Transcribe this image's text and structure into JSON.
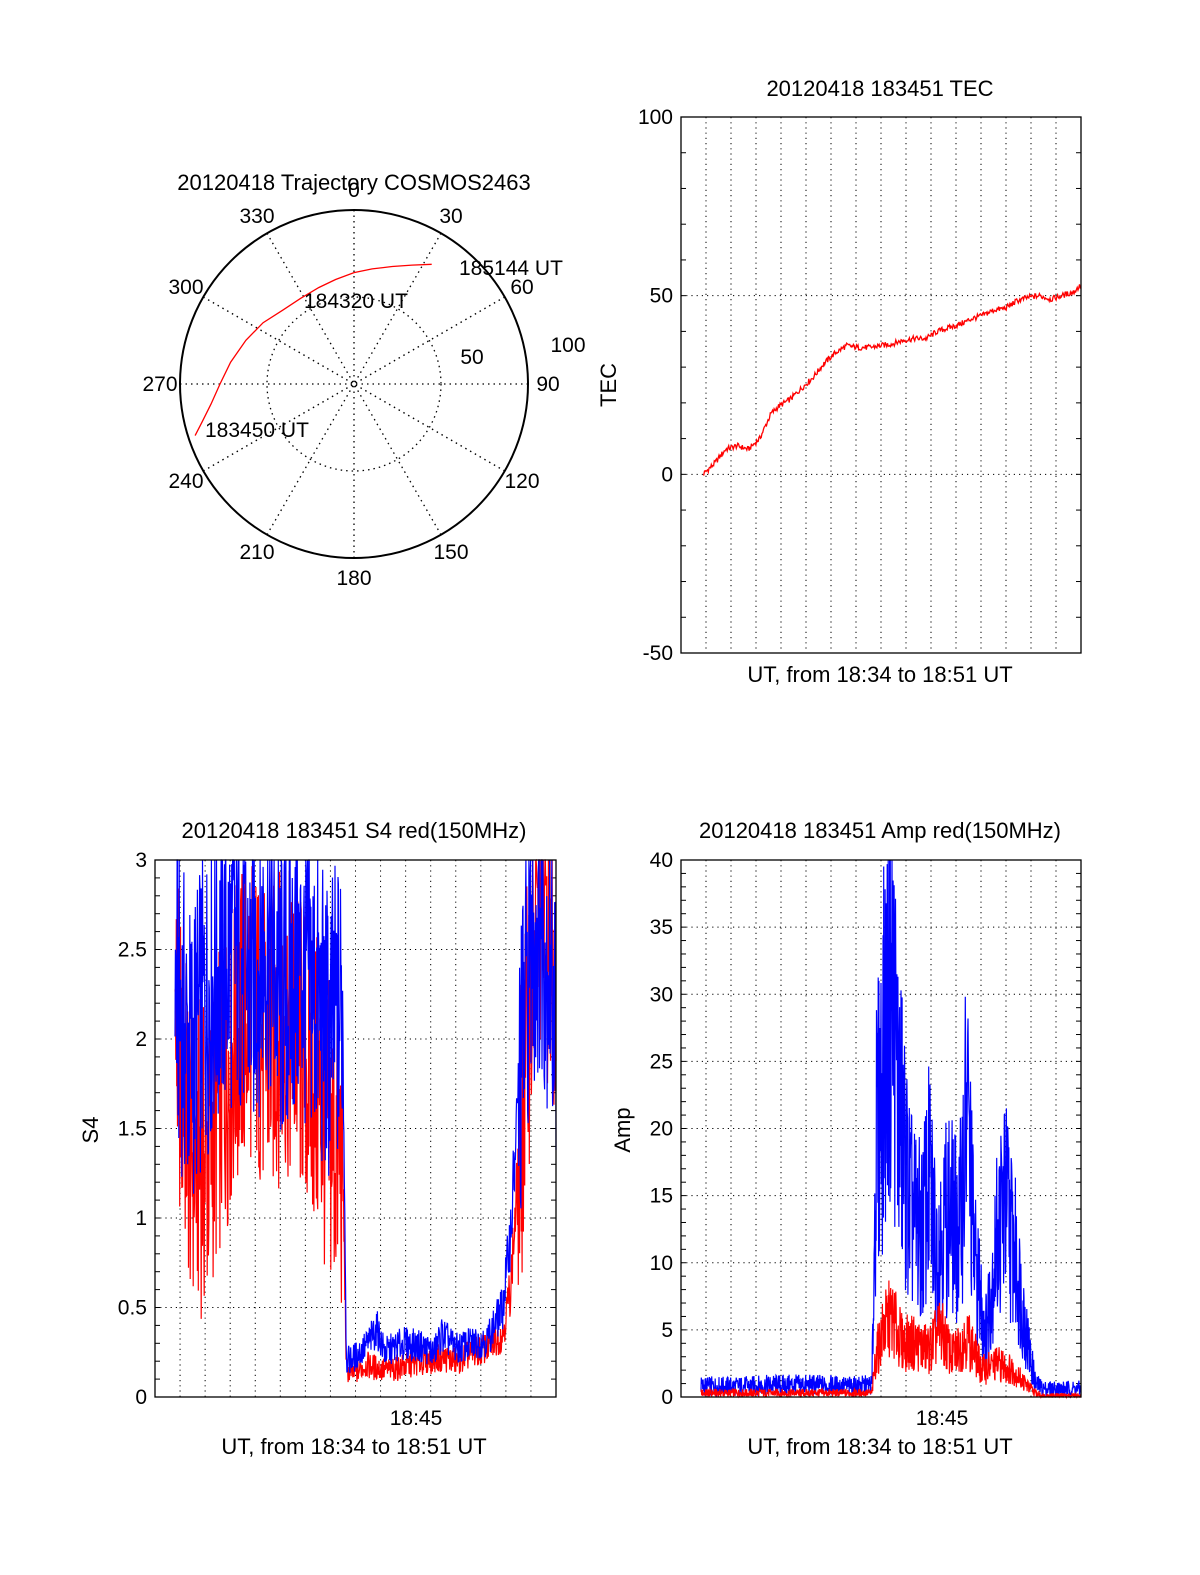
{
  "colors": {
    "red": "#ff0000",
    "blue": "#0000ff",
    "axis": "#000000",
    "grid": "#000000"
  },
  "chart_data": [
    {
      "type": "polar",
      "title": "20120418 Trajectory COSMOS2463",
      "azimuth_labels": [
        "0",
        "30",
        "60",
        "90",
        "120",
        "150",
        "180",
        "210",
        "240",
        "270",
        "300",
        "330"
      ],
      "radial_labels": [
        "50",
        "100"
      ],
      "series": [
        {
          "color": "#ff0000",
          "points": [
            {
              "az": 252,
              "r": 96
            },
            {
              "az": 256,
              "r": 90
            },
            {
              "az": 262,
              "r": 83
            },
            {
              "az": 270,
              "r": 77
            },
            {
              "az": 280,
              "r": 72
            },
            {
              "az": 292,
              "r": 67
            },
            {
              "az": 304,
              "r": 63
            },
            {
              "az": 316,
              "r": 59
            },
            {
              "az": 328,
              "r": 58
            },
            {
              "az": 340,
              "r": 59
            },
            {
              "az": 350,
              "r": 61
            },
            {
              "az": 0,
              "r": 64
            },
            {
              "az": 9,
              "r": 67
            },
            {
              "az": 18,
              "r": 71
            },
            {
              "az": 26,
              "r": 76
            },
            {
              "az": 33,
              "r": 82
            }
          ]
        }
      ],
      "annotations": [
        "183450 UT",
        "184320 UT",
        "185144 UT"
      ]
    },
    {
      "type": "line",
      "title": "20120418 183451 TEC",
      "xlabel": "UT, from 18:34 to 18:51 UT",
      "ylabel": "TEC",
      "ylim": [
        -50,
        100
      ],
      "yticks": [
        "-50",
        "0",
        "50",
        "100"
      ],
      "grid": true,
      "series": [
        {
          "color": "#ff0000",
          "x": [
            0,
            0.03,
            0.06,
            0.09,
            0.12,
            0.15,
            0.18,
            0.2,
            0.23,
            0.26,
            0.29,
            0.32,
            0.35,
            0.38,
            0.41,
            0.44,
            0.47,
            0.5,
            0.53,
            0.56,
            0.59,
            0.62,
            0.65,
            0.68,
            0.71,
            0.74,
            0.77,
            0.8,
            0.83,
            0.86,
            0.89,
            0.92,
            0.95,
            0.98,
            1.0
          ],
          "values": [
            0,
            3,
            7,
            8,
            7,
            10,
            17,
            19,
            21,
            24,
            27,
            31,
            34,
            36,
            35.5,
            35.5,
            36,
            36.5,
            37.5,
            38,
            38,
            40,
            41,
            42,
            43.5,
            44.5,
            46,
            46.5,
            48.5,
            49.5,
            50,
            49,
            50,
            51,
            53
          ]
        }
      ]
    },
    {
      "type": "line",
      "title": "20120418 183451 S4 red(150MHz)",
      "xlabel": "UT, from 18:34 to 18:51 UT",
      "ylabel": "S4",
      "ylim": [
        0,
        3
      ],
      "yticks": [
        "0",
        "0.5",
        "1",
        "1.5",
        "2",
        "2.5",
        "3"
      ],
      "xticks": [
        "18:45"
      ],
      "grid": true,
      "series": [
        {
          "color": "#ff0000",
          "x": [
            0.0,
            0.04,
            0.08,
            0.12,
            0.16,
            0.2,
            0.24,
            0.28,
            0.32,
            0.36,
            0.4,
            0.44,
            0.45,
            0.47,
            0.5,
            0.55,
            0.6,
            0.65,
            0.7,
            0.74,
            0.78,
            0.82,
            0.86,
            0.88,
            0.9,
            0.93,
            0.96,
            1.0
          ],
          "values": [
            2.1,
            1.4,
            1.3,
            1.7,
            2.0,
            2.2,
            1.9,
            2.1,
            2.0,
            1.8,
            1.5,
            1.3,
            0.15,
            0.13,
            0.18,
            0.15,
            0.17,
            0.2,
            0.22,
            0.2,
            0.24,
            0.28,
            0.35,
            0.6,
            1.2,
            2.2,
            2.8,
            2.4
          ]
        },
        {
          "color": "#0000ff",
          "x": [
            0.0,
            0.04,
            0.08,
            0.12,
            0.16,
            0.2,
            0.24,
            0.28,
            0.32,
            0.36,
            0.4,
            0.44,
            0.45,
            0.47,
            0.5,
            0.53,
            0.55,
            0.6,
            0.65,
            0.68,
            0.7,
            0.74,
            0.78,
            0.82,
            0.86,
            0.88,
            0.9,
            0.93,
            0.96,
            1.0
          ],
          "values": [
            2.3,
            1.9,
            2.2,
            2.4,
            2.5,
            2.3,
            2.6,
            2.2,
            2.4,
            2.3,
            2.0,
            2.2,
            0.2,
            0.22,
            0.28,
            0.38,
            0.25,
            0.3,
            0.28,
            0.25,
            0.35,
            0.27,
            0.3,
            0.32,
            0.5,
            0.9,
            1.6,
            2.5,
            2.7,
            2.2
          ]
        }
      ]
    },
    {
      "type": "line",
      "title": "20120418 183451 Amp red(150MHz)",
      "xlabel": "UT, from 18:34 to 18:51 UT",
      "ylabel": "Amp",
      "ylim": [
        0,
        40
      ],
      "yticks": [
        "0",
        "5",
        "10",
        "15",
        "20",
        "25",
        "30",
        "35",
        "40"
      ],
      "xticks": [
        "18:45"
      ],
      "grid": true,
      "series": [
        {
          "color": "#0000ff",
          "x": [
            0.0,
            0.1,
            0.2,
            0.3,
            0.4,
            0.45,
            0.46,
            0.48,
            0.5,
            0.52,
            0.55,
            0.58,
            0.6,
            0.62,
            0.65,
            0.68,
            0.7,
            0.72,
            0.75,
            0.78,
            0.8,
            0.83,
            0.86,
            0.88,
            0.9,
            0.95,
            1.0
          ],
          "values": [
            0.8,
            0.8,
            0.9,
            0.9,
            0.8,
            0.9,
            18,
            25,
            32,
            22,
            14,
            12,
            16,
            11,
            14,
            12,
            22,
            10,
            5,
            12,
            15,
            10,
            4,
            1,
            0.6,
            0.6,
            0.6
          ]
        },
        {
          "color": "#ff0000",
          "x": [
            0.0,
            0.45,
            0.46,
            0.48,
            0.5,
            0.53,
            0.56,
            0.6,
            0.63,
            0.66,
            0.7,
            0.74,
            0.78,
            0.82,
            0.86,
            0.88,
            0.9,
            1.0
          ],
          "values": [
            0.3,
            0.3,
            3,
            5,
            6,
            4,
            4,
            3.5,
            5,
            3,
            4.5,
            2,
            2.5,
            2,
            0.8,
            0.3,
            0.1,
            0.1
          ]
        }
      ]
    }
  ]
}
